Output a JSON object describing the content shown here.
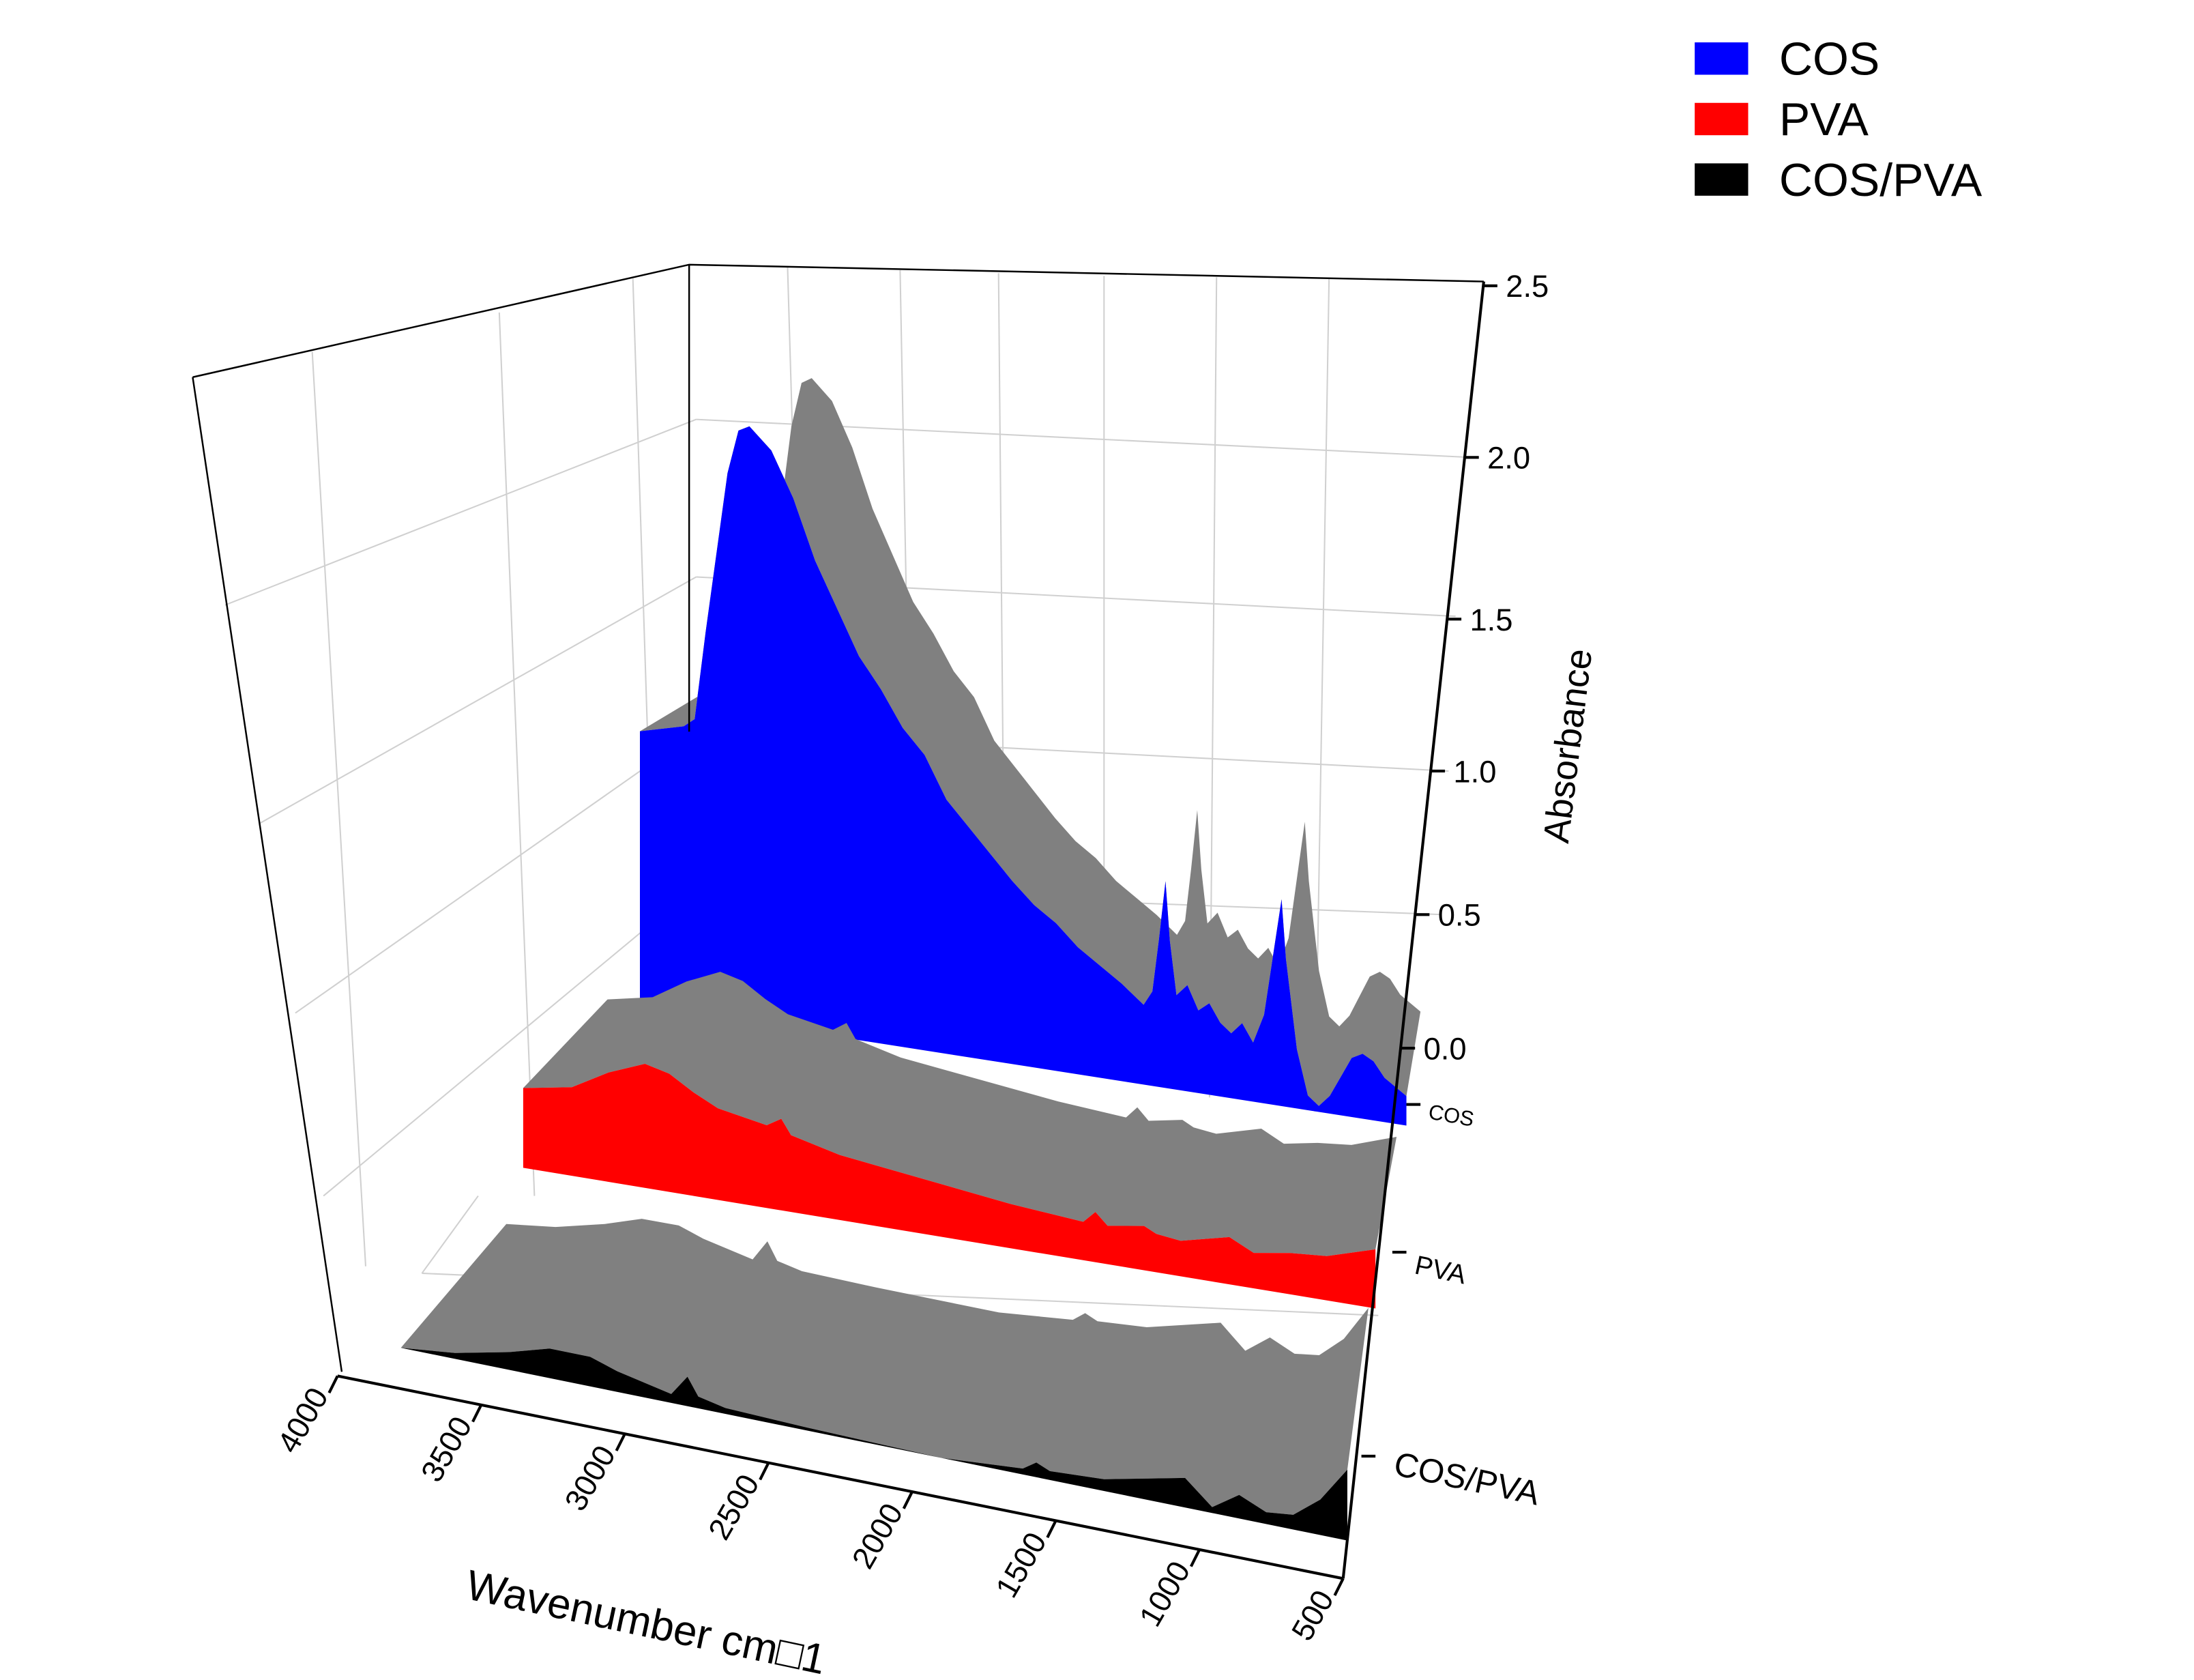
{
  "chart_data": {
    "type": "area",
    "subtype": "3d-wall",
    "title": "",
    "xlabel": "Wavenumber cm□1",
    "ylabel": "",
    "zlabel": "Absorbance",
    "xlim": [
      4000,
      500
    ],
    "zlim": [
      0.0,
      2.5
    ],
    "x_ticks": [
      "4000",
      "3500",
      "3000",
      "2500",
      "2000",
      "1500",
      "1000",
      "500"
    ],
    "z_ticks": [
      "2.5",
      "2.0",
      "1.5",
      "1.0",
      "0.5",
      "0.0"
    ],
    "y_categories": [
      "COS",
      "PVA",
      "COS/PVA"
    ],
    "grid": true,
    "legend_position": "top-right",
    "top_surface_color": "#808080",
    "series": [
      {
        "name": "COS",
        "color": "#0000ff",
        "points": [
          [
            4000,
            0.93
          ],
          [
            3900,
            0.95
          ],
          [
            3800,
            0.97
          ],
          [
            3750,
            1.0
          ],
          [
            3700,
            1.3
          ],
          [
            3600,
            1.85
          ],
          [
            3550,
            2.0
          ],
          [
            3500,
            2.02
          ],
          [
            3400,
            1.95
          ],
          [
            3300,
            1.8
          ],
          [
            3200,
            1.6
          ],
          [
            3100,
            1.45
          ],
          [
            3000,
            1.3
          ],
          [
            2900,
            1.2
          ],
          [
            2800,
            1.08
          ],
          [
            2700,
            1.0
          ],
          [
            2600,
            0.86
          ],
          [
            2500,
            0.78
          ],
          [
            2400,
            0.7
          ],
          [
            2300,
            0.62
          ],
          [
            2200,
            0.55
          ],
          [
            2100,
            0.5
          ],
          [
            2000,
            0.43
          ],
          [
            1900,
            0.38
          ],
          [
            1800,
            0.33
          ],
          [
            1700,
            0.27
          ],
          [
            1660,
            0.32
          ],
          [
            1630,
            0.5
          ],
          [
            1600,
            0.7
          ],
          [
            1580,
            0.5
          ],
          [
            1550,
            0.32
          ],
          [
            1500,
            0.36
          ],
          [
            1450,
            0.28
          ],
          [
            1400,
            0.31
          ],
          [
            1350,
            0.25
          ],
          [
            1300,
            0.22
          ],
          [
            1250,
            0.26
          ],
          [
            1200,
            0.2
          ],
          [
            1150,
            0.3
          ],
          [
            1100,
            0.55
          ],
          [
            1070,
            0.7
          ],
          [
            1050,
            0.5
          ],
          [
            1000,
            0.2
          ],
          [
            950,
            0.05
          ],
          [
            900,
            0.02
          ],
          [
            850,
            0.06
          ],
          [
            800,
            0.13
          ],
          [
            750,
            0.2
          ],
          [
            700,
            0.22
          ],
          [
            650,
            0.2
          ],
          [
            600,
            0.15
          ],
          [
            500,
            0.1
          ]
        ]
      },
      {
        "name": "PVA",
        "color": "#ff0000",
        "points": [
          [
            4000,
            0.27
          ],
          [
            3800,
            0.3
          ],
          [
            3650,
            0.37
          ],
          [
            3500,
            0.42
          ],
          [
            3400,
            0.4
          ],
          [
            3300,
            0.35
          ],
          [
            3200,
            0.31
          ],
          [
            3000,
            0.28
          ],
          [
            2940,
            0.31
          ],
          [
            2900,
            0.26
          ],
          [
            2700,
            0.22
          ],
          [
            2500,
            0.2
          ],
          [
            2000,
            0.15
          ],
          [
            1700,
            0.13
          ],
          [
            1650,
            0.17
          ],
          [
            1600,
            0.13
          ],
          [
            1450,
            0.15
          ],
          [
            1400,
            0.13
          ],
          [
            1300,
            0.12
          ],
          [
            1100,
            0.16
          ],
          [
            1000,
            0.12
          ],
          [
            850,
            0.14
          ],
          [
            700,
            0.15
          ],
          [
            500,
            0.2
          ]
        ]
      },
      {
        "name": "COS/PVA",
        "color": "#000000",
        "points": [
          [
            4000,
            0.0
          ],
          [
            3800,
            0.02
          ],
          [
            3600,
            0.06
          ],
          [
            3450,
            0.1
          ],
          [
            3300,
            0.1
          ],
          [
            3200,
            0.07
          ],
          [
            3000,
            0.03
          ],
          [
            2940,
            0.1
          ],
          [
            2900,
            0.04
          ],
          [
            2800,
            0.02
          ],
          [
            2500,
            0.01
          ],
          [
            2000,
            0.0
          ],
          [
            1700,
            0.02
          ],
          [
            1650,
            0.05
          ],
          [
            1600,
            0.03
          ],
          [
            1400,
            0.04
          ],
          [
            1100,
            0.1
          ],
          [
            1050,
            0.06
          ],
          [
            1000,
            0.02
          ],
          [
            900,
            0.08
          ],
          [
            800,
            0.04
          ],
          [
            700,
            0.05
          ],
          [
            600,
            0.12
          ],
          [
            500,
            0.24
          ]
        ]
      }
    ]
  }
}
